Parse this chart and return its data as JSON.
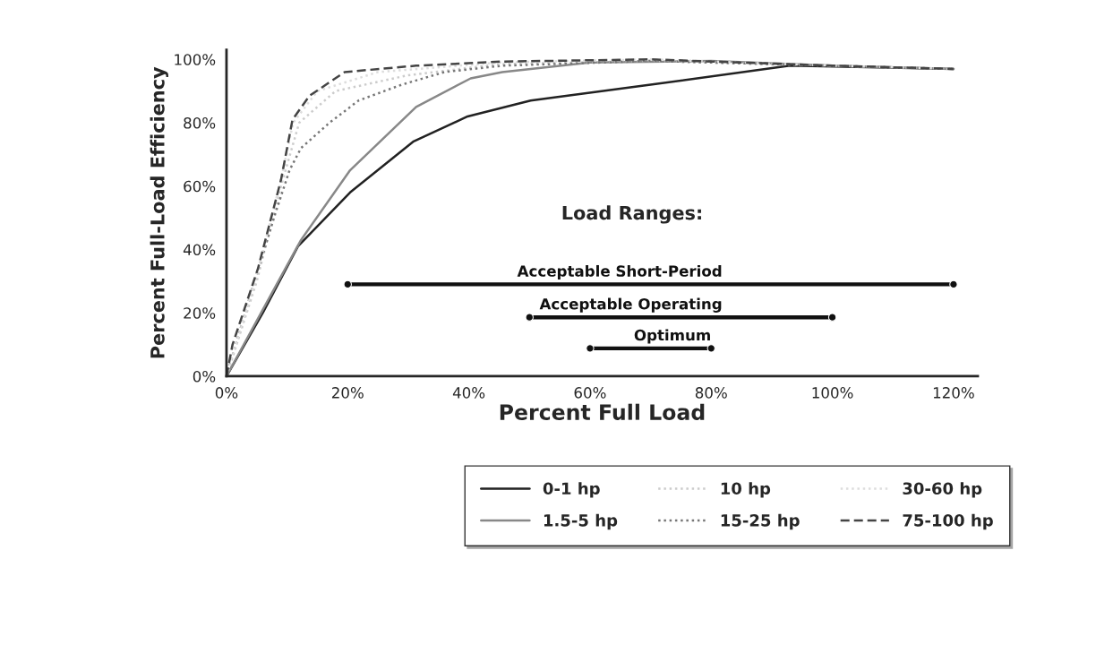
{
  "chart_data": {
    "type": "line",
    "xlabel": "Percent Full Load",
    "ylabel": "Percent Full-Load Efficiency",
    "xlim": [
      0,
      124
    ],
    "ylim": [
      0,
      103
    ],
    "xticks": [
      {
        "value": 0,
        "label": "0%"
      },
      {
        "value": 20,
        "label": "20%"
      },
      {
        "value": 40,
        "label": "40%"
      },
      {
        "value": 60,
        "label": "60%"
      },
      {
        "value": 80,
        "label": "80%"
      },
      {
        "value": 100,
        "label": "100%"
      },
      {
        "value": 120,
        "label": "120%"
      }
    ],
    "yticks": [
      {
        "value": 0,
        "label": "0%"
      },
      {
        "value": 20,
        "label": "20%"
      },
      {
        "value": 40,
        "label": "40%"
      },
      {
        "value": 60,
        "label": "60%"
      },
      {
        "value": 80,
        "label": "80%"
      },
      {
        "value": 100,
        "label": "100%"
      }
    ],
    "legend": "bottom",
    "grid": false,
    "annotations": [
      "Load Ranges:"
    ],
    "series": [
      {
        "name": "0-1 hp",
        "color": "#222222",
        "line_style": "solid",
        "x": [
          0,
          6,
          11.8,
          20.4,
          30.8,
          39.8,
          50.2,
          70,
          93,
          120
        ],
        "values": [
          0,
          20,
          41,
          58,
          74,
          82,
          87,
          92,
          98,
          97
        ]
      },
      {
        "name": "1.5-5 hp",
        "color": "#888888",
        "line_style": "solid",
        "x": [
          0,
          6,
          12.3,
          20.4,
          31.3,
          40.3,
          45.5,
          60,
          80,
          100,
          120
        ],
        "values": [
          0,
          21,
          43,
          65,
          85,
          94,
          96,
          99,
          99.5,
          98,
          97
        ]
      },
      {
        "name": "10 hp",
        "color": "#cccccc",
        "line_style": "dotted",
        "x": [
          0,
          5,
          9,
          12,
          18,
          30,
          45,
          70,
          100,
          120
        ],
        "values": [
          0,
          30,
          60,
          80,
          90,
          95,
          98.5,
          99.5,
          98,
          97
        ]
      },
      {
        "name": "15-25 hp",
        "color": "#777777",
        "line_style": "dotted",
        "x": [
          0,
          4,
          8,
          10.4,
          12.3,
          17,
          21.8,
          28.9,
          36,
          45.5,
          70,
          100,
          120
        ],
        "values": [
          0,
          26,
          51,
          65,
          72,
          80,
          87,
          92,
          96,
          98,
          99.5,
          98,
          97
        ]
      },
      {
        "name": "30-60 hp",
        "color": "#dddddd",
        "line_style": "dotted",
        "x": [
          0,
          5,
          9,
          11,
          15,
          25,
          45,
          70,
          100,
          120
        ],
        "values": [
          0,
          32,
          62,
          80,
          90,
          96,
          99,
          100,
          98,
          97
        ]
      },
      {
        "name": "75-100 hp",
        "color": "#444444",
        "line_style": "dashed",
        "x": [
          0,
          1,
          5.2,
          9,
          10.9,
          13.7,
          19.5,
          31.3,
          45.5,
          70,
          100,
          120
        ],
        "values": [
          0,
          10,
          34,
          62,
          81,
          88.5,
          96,
          98,
          99.3,
          100,
          98,
          97
        ]
      },
      {
        "name": "Acceptable Short-Period",
        "marker": "circle",
        "color": "#111111",
        "line_style": "solid",
        "x": [
          20,
          120
        ],
        "values": [
          29,
          29
        ]
      },
      {
        "name": "Acceptable Operating",
        "marker": "circle",
        "color": "#111111",
        "line_style": "solid",
        "x": [
          50,
          100
        ],
        "values": [
          18.6,
          18.6
        ]
      },
      {
        "name": "Optimum",
        "marker": "circle",
        "color": "#111111",
        "line_style": "solid",
        "x": [
          60,
          80
        ],
        "values": [
          8.8,
          8.8
        ]
      }
    ]
  }
}
